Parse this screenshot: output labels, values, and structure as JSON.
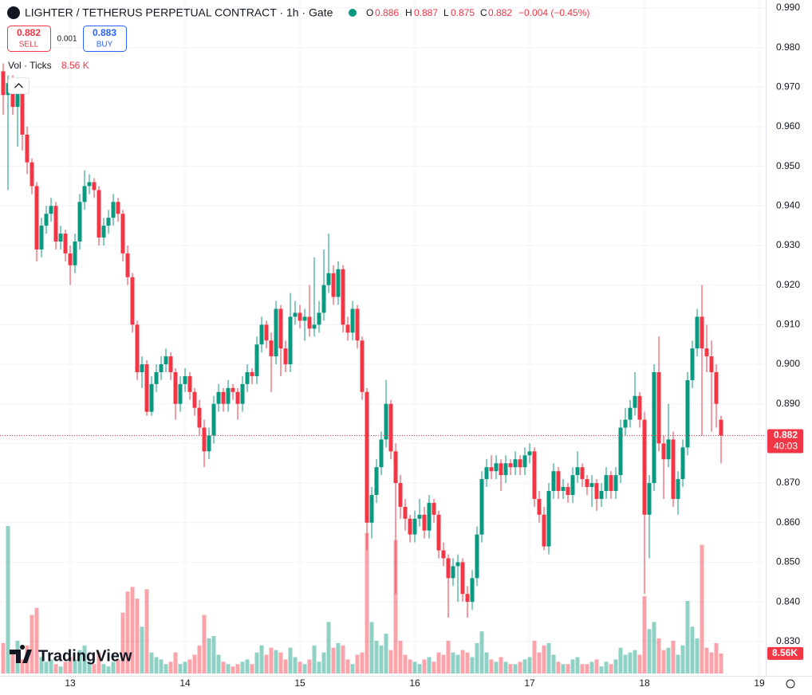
{
  "header": {
    "title": "LIGHTER / TETHERUS PERPETUAL CONTRACT · 1h · Gate",
    "o_key": "O",
    "o": "0.886",
    "h_key": "H",
    "h": "0.887",
    "l_key": "L",
    "l": "0.875",
    "c_key": "C",
    "c": "0.882",
    "change": "−0.004 (−0.45%)",
    "sell_price": "0.882",
    "sell": "SELL",
    "spread": "0.001",
    "buy_price": "0.883",
    "buy": "BUY",
    "volume_title": "Vol · Ticks",
    "volume_value": "8.56 K",
    "brand": "TradingView"
  },
  "chart_data": {
    "type": "candlestick",
    "colors": {
      "up": "#089981",
      "down": "#f23645"
    },
    "grid": true,
    "xlim": [
      -0.667,
      159.333
    ],
    "xticks": [
      {
        "value": 14,
        "label": "13"
      },
      {
        "value": 38,
        "label": "14"
      },
      {
        "value": 62,
        "label": "15"
      },
      {
        "value": 86,
        "label": "16"
      },
      {
        "value": 110,
        "label": "17"
      },
      {
        "value": 134,
        "label": "18"
      },
      {
        "value": 158,
        "label": "19"
      }
    ],
    "ylim": [
      0.8213,
      0.992
    ],
    "yticks": [
      {
        "value": 0.83,
        "label": "0.830"
      },
      {
        "value": 0.84,
        "label": "0.840"
      },
      {
        "value": 0.85,
        "label": "0.850"
      },
      {
        "value": 0.86,
        "label": "0.860"
      },
      {
        "value": 0.87,
        "label": "0.870"
      },
      {
        "value": 0.88,
        "label": "0.880"
      },
      {
        "value": 0.89,
        "label": "0.890"
      },
      {
        "value": 0.9,
        "label": "0.900"
      },
      {
        "value": 0.91,
        "label": "0.910"
      },
      {
        "value": 0.92,
        "label": "0.920"
      },
      {
        "value": 0.93,
        "label": "0.930"
      },
      {
        "value": 0.94,
        "label": "0.940"
      },
      {
        "value": 0.95,
        "label": "0.950"
      },
      {
        "value": 0.96,
        "label": "0.960"
      },
      {
        "value": 0.97,
        "label": "0.970"
      },
      {
        "value": 0.98,
        "label": "0.980"
      },
      {
        "value": 0.99,
        "label": "0.990"
      }
    ],
    "countdown": "40:03",
    "volume_axis_label": "8.56K",
    "ohlc": [
      [
        0.974,
        0.976,
        0.963,
        0.968
      ],
      [
        0.968,
        0.973,
        0.944,
        0.971
      ],
      [
        0.971,
        0.973,
        0.963,
        0.965
      ],
      [
        0.965,
        0.971,
        0.955,
        0.969
      ],
      [
        0.969,
        0.97,
        0.954,
        0.958
      ],
      [
        0.958,
        0.96,
        0.948,
        0.951
      ],
      [
        0.951,
        0.952,
        0.943,
        0.945
      ],
      [
        0.945,
        0.946,
        0.926,
        0.929
      ],
      [
        0.929,
        0.937,
        0.927,
        0.935
      ],
      [
        0.935,
        0.94,
        0.933,
        0.938
      ],
      [
        0.938,
        0.942,
        0.936,
        0.94
      ],
      [
        0.94,
        0.941,
        0.929,
        0.931
      ],
      [
        0.931,
        0.935,
        0.929,
        0.933
      ],
      [
        0.933,
        0.934,
        0.926,
        0.928
      ],
      [
        0.928,
        0.93,
        0.92,
        0.925
      ],
      [
        0.925,
        0.933,
        0.923,
        0.931
      ],
      [
        0.931,
        0.943,
        0.929,
        0.941
      ],
      [
        0.941,
        0.949,
        0.939,
        0.945
      ],
      [
        0.945,
        0.948,
        0.943,
        0.946
      ],
      [
        0.946,
        0.947,
        0.942,
        0.944
      ],
      [
        0.944,
        0.945,
        0.93,
        0.932
      ],
      [
        0.932,
        0.937,
        0.93,
        0.935
      ],
      [
        0.935,
        0.939,
        0.933,
        0.937
      ],
      [
        0.937,
        0.943,
        0.935,
        0.941
      ],
      [
        0.941,
        0.942,
        0.936,
        0.938
      ],
      [
        0.938,
        0.939,
        0.926,
        0.928
      ],
      [
        0.928,
        0.93,
        0.92,
        0.922
      ],
      [
        0.922,
        0.923,
        0.908,
        0.91
      ],
      [
        0.91,
        0.911,
        0.896,
        0.898
      ],
      [
        0.898,
        0.902,
        0.894,
        0.9
      ],
      [
        0.9,
        0.901,
        0.887,
        0.888
      ],
      [
        0.888,
        0.897,
        0.887,
        0.895
      ],
      [
        0.895,
        0.9,
        0.893,
        0.898
      ],
      [
        0.898,
        0.902,
        0.896,
        0.9
      ],
      [
        0.9,
        0.904,
        0.898,
        0.902
      ],
      [
        0.902,
        0.903,
        0.896,
        0.898
      ],
      [
        0.898,
        0.899,
        0.886,
        0.89
      ],
      [
        0.89,
        0.897,
        0.888,
        0.895
      ],
      [
        0.895,
        0.899,
        0.893,
        0.897
      ],
      [
        0.897,
        0.898,
        0.891,
        0.893
      ],
      [
        0.893,
        0.894,
        0.887,
        0.889
      ],
      [
        0.889,
        0.891,
        0.882,
        0.884
      ],
      [
        0.884,
        0.886,
        0.874,
        0.878
      ],
      [
        0.878,
        0.884,
        0.876,
        0.882
      ],
      [
        0.882,
        0.892,
        0.88,
        0.89
      ],
      [
        0.89,
        0.895,
        0.888,
        0.893
      ],
      [
        0.893,
        0.894,
        0.888,
        0.89
      ],
      [
        0.89,
        0.896,
        0.888,
        0.894
      ],
      [
        0.894,
        0.895,
        0.891,
        0.893
      ],
      [
        0.893,
        0.894,
        0.886,
        0.89
      ],
      [
        0.89,
        0.897,
        0.888,
        0.895
      ],
      [
        0.895,
        0.9,
        0.893,
        0.898
      ],
      [
        0.898,
        0.899,
        0.895,
        0.897
      ],
      [
        0.897,
        0.907,
        0.895,
        0.905
      ],
      [
        0.905,
        0.912,
        0.903,
        0.91
      ],
      [
        0.91,
        0.911,
        0.904,
        0.906
      ],
      [
        0.906,
        0.908,
        0.893,
        0.902
      ],
      [
        0.902,
        0.916,
        0.9,
        0.914
      ],
      [
        0.914,
        0.915,
        0.897,
        0.904
      ],
      [
        0.904,
        0.906,
        0.898,
        0.9
      ],
      [
        0.9,
        0.918,
        0.898,
        0.912
      ],
      [
        0.912,
        0.916,
        0.91,
        0.913
      ],
      [
        0.913,
        0.915,
        0.909,
        0.911
      ],
      [
        0.911,
        0.914,
        0.906,
        0.912
      ],
      [
        0.912,
        0.92,
        0.907,
        0.909
      ],
      [
        0.909,
        0.927,
        0.907,
        0.91
      ],
      [
        0.91,
        0.916,
        0.908,
        0.913
      ],
      [
        0.913,
        0.929,
        0.911,
        0.92
      ],
      [
        0.92,
        0.933,
        0.918,
        0.923
      ],
      [
        0.923,
        0.925,
        0.915,
        0.917
      ],
      [
        0.917,
        0.926,
        0.915,
        0.924
      ],
      [
        0.924,
        0.925,
        0.908,
        0.91
      ],
      [
        0.91,
        0.912,
        0.906,
        0.908
      ],
      [
        0.908,
        0.916,
        0.906,
        0.914
      ],
      [
        0.914,
        0.915,
        0.904,
        0.906
      ],
      [
        0.906,
        0.907,
        0.891,
        0.893
      ],
      [
        0.893,
        0.894,
        0.853,
        0.86
      ],
      [
        0.86,
        0.869,
        0.856,
        0.867
      ],
      [
        0.867,
        0.876,
        0.865,
        0.874
      ],
      [
        0.874,
        0.883,
        0.872,
        0.881
      ],
      [
        0.881,
        0.896,
        0.879,
        0.89
      ],
      [
        0.89,
        0.891,
        0.876,
        0.878
      ],
      [
        0.878,
        0.88,
        0.842,
        0.87
      ],
      [
        0.87,
        0.872,
        0.861,
        0.864
      ],
      [
        0.864,
        0.866,
        0.858,
        0.861
      ],
      [
        0.861,
        0.862,
        0.855,
        0.857
      ],
      [
        0.857,
        0.863,
        0.855,
        0.861
      ],
      [
        0.861,
        0.866,
        0.859,
        0.862
      ],
      [
        0.862,
        0.864,
        0.856,
        0.858
      ],
      [
        0.858,
        0.867,
        0.856,
        0.865
      ],
      [
        0.865,
        0.866,
        0.86,
        0.862
      ],
      [
        0.862,
        0.863,
        0.851,
        0.853
      ],
      [
        0.853,
        0.855,
        0.849,
        0.851
      ],
      [
        0.851,
        0.852,
        0.836,
        0.846
      ],
      [
        0.846,
        0.851,
        0.844,
        0.849
      ],
      [
        0.849,
        0.852,
        0.84,
        0.85
      ],
      [
        0.85,
        0.851,
        0.84,
        0.842
      ],
      [
        0.842,
        0.844,
        0.836,
        0.84
      ],
      [
        0.84,
        0.848,
        0.838,
        0.846
      ],
      [
        0.846,
        0.859,
        0.844,
        0.857
      ],
      [
        0.857,
        0.873,
        0.855,
        0.871
      ],
      [
        0.871,
        0.876,
        0.869,
        0.874
      ],
      [
        0.874,
        0.877,
        0.871,
        0.873
      ],
      [
        0.873,
        0.877,
        0.871,
        0.875
      ],
      [
        0.875,
        0.876,
        0.868,
        0.872
      ],
      [
        0.872,
        0.877,
        0.87,
        0.875
      ],
      [
        0.875,
        0.876,
        0.872,
        0.874
      ],
      [
        0.874,
        0.878,
        0.872,
        0.876
      ],
      [
        0.876,
        0.877,
        0.872,
        0.874
      ],
      [
        0.874,
        0.879,
        0.872,
        0.877
      ],
      [
        0.877,
        0.88,
        0.875,
        0.878
      ],
      [
        0.878,
        0.879,
        0.864,
        0.866
      ],
      [
        0.866,
        0.868,
        0.86,
        0.862
      ],
      [
        0.862,
        0.864,
        0.853,
        0.854
      ],
      [
        0.854,
        0.87,
        0.852,
        0.868
      ],
      [
        0.868,
        0.875,
        0.866,
        0.873
      ],
      [
        0.873,
        0.874,
        0.866,
        0.868
      ],
      [
        0.868,
        0.871,
        0.866,
        0.869
      ],
      [
        0.869,
        0.87,
        0.865,
        0.867
      ],
      [
        0.867,
        0.874,
        0.865,
        0.872
      ],
      [
        0.872,
        0.878,
        0.87,
        0.874
      ],
      [
        0.874,
        0.875,
        0.869,
        0.871
      ],
      [
        0.871,
        0.872,
        0.867,
        0.869
      ],
      [
        0.869,
        0.872,
        0.864,
        0.87
      ],
      [
        0.87,
        0.871,
        0.863,
        0.866
      ],
      [
        0.866,
        0.87,
        0.864,
        0.868
      ],
      [
        0.868,
        0.874,
        0.866,
        0.872
      ],
      [
        0.872,
        0.873,
        0.866,
        0.868
      ],
      [
        0.868,
        0.874,
        0.866,
        0.872
      ],
      [
        0.872,
        0.886,
        0.87,
        0.884
      ],
      [
        0.884,
        0.889,
        0.882,
        0.886
      ],
      [
        0.886,
        0.891,
        0.884,
        0.889
      ],
      [
        0.889,
        0.898,
        0.887,
        0.892
      ],
      [
        0.892,
        0.893,
        0.884,
        0.886
      ],
      [
        0.886,
        0.888,
        0.842,
        0.862
      ],
      [
        0.862,
        0.872,
        0.851,
        0.87
      ],
      [
        0.87,
        0.9,
        0.868,
        0.898
      ],
      [
        0.898,
        0.907,
        0.878,
        0.88
      ],
      [
        0.88,
        0.882,
        0.866,
        0.876
      ],
      [
        0.876,
        0.89,
        0.874,
        0.881
      ],
      [
        0.881,
        0.883,
        0.864,
        0.866
      ],
      [
        0.866,
        0.873,
        0.862,
        0.871
      ],
      [
        0.871,
        0.881,
        0.869,
        0.879
      ],
      [
        0.879,
        0.898,
        0.877,
        0.896
      ],
      [
        0.896,
        0.906,
        0.894,
        0.904
      ],
      [
        0.904,
        0.914,
        0.902,
        0.912
      ],
      [
        0.912,
        0.92,
        0.882,
        0.904
      ],
      [
        0.904,
        0.91,
        0.898,
        0.902
      ],
      [
        0.902,
        0.906,
        0.883,
        0.898
      ],
      [
        0.898,
        0.9,
        0.884,
        0.89
      ],
      [
        0.886,
        0.887,
        0.875,
        0.882
      ]
    ],
    "volume": [
      13000,
      63000,
      9000,
      14000,
      6000,
      12000,
      25000,
      28000,
      7000,
      5000,
      6000,
      4000,
      3000,
      5000,
      7000,
      6000,
      10000,
      12000,
      5000,
      4000,
      9000,
      4000,
      3000,
      5000,
      6000,
      26000,
      35000,
      37000,
      32000,
      20000,
      36000,
      9000,
      7000,
      6000,
      4000,
      5000,
      9000,
      4000,
      5000,
      6000,
      8000,
      12000,
      25000,
      15000,
      16000,
      8000,
      5000,
      4000,
      3000,
      4000,
      5000,
      6000,
      4000,
      9000,
      12000,
      8000,
      11000,
      10000,
      9000,
      6000,
      11000,
      7000,
      5000,
      4000,
      6000,
      12000,
      5000,
      9000,
      22000,
      11000,
      13000,
      12000,
      6000,
      4000,
      8000,
      9000,
      60000,
      22000,
      14000,
      12000,
      17000,
      10000,
      57000,
      14000,
      8000,
      6000,
      5000,
      4000,
      6000,
      7000,
      5000,
      9000,
      8000,
      14000,
      9000,
      8000,
      10000,
      9000,
      7000,
      13000,
      18000,
      9000,
      6000,
      5000,
      7000,
      5000,
      4000,
      4000,
      5000,
      6000,
      7000,
      14000,
      9000,
      12000,
      13000,
      8000,
      5000,
      4000,
      4000,
      6000,
      7000,
      4000,
      4000,
      5000,
      6000,
      3000,
      5000,
      4000,
      6000,
      11000,
      8000,
      9000,
      10000,
      8000,
      33000,
      19000,
      22000,
      15000,
      10000,
      11000,
      14000,
      8000,
      12000,
      31000,
      20000,
      15000,
      55000,
      11000,
      9000,
      13000,
      8560
    ]
  }
}
